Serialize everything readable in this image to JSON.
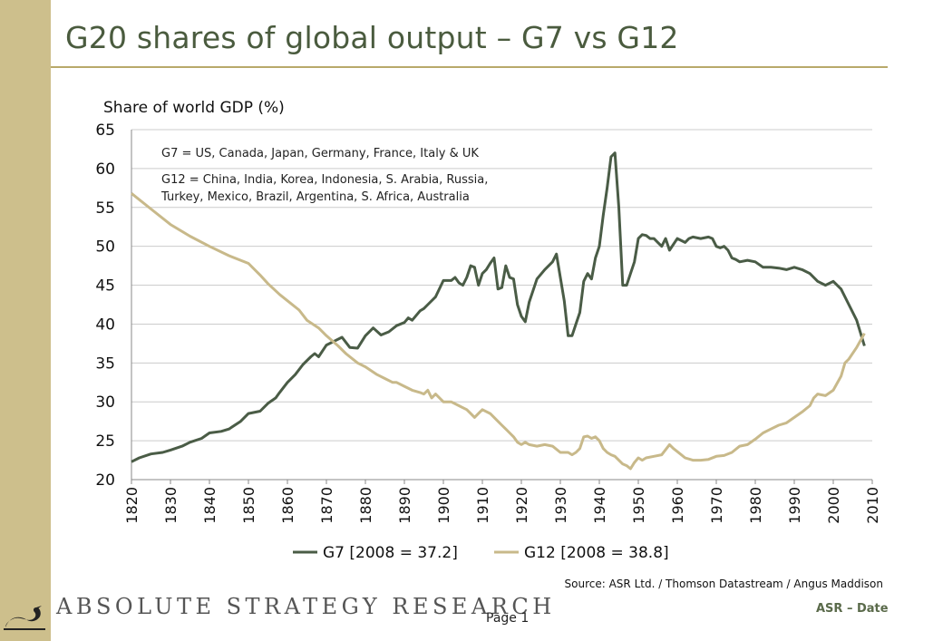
{
  "slide": {
    "title": "G20 shares of global output – G7 vs G12",
    "page_label": "Page 1",
    "brand": "ABSOLUTE STRATEGY RESEARCH",
    "date_label": "ASR – Date",
    "source": "Source: ASR Ltd. / Thomson Datastream / Angus Maddison"
  },
  "colors": {
    "sidebar": "#cdbf8c",
    "title": "#4a5b3e",
    "g7_line": "#4a5c46",
    "g12_line": "#c8b98a",
    "grid": "#cccccc"
  },
  "chart_data": {
    "type": "line",
    "title": "",
    "ylabel": "Share of world GDP (%)",
    "xlabel": "",
    "xlim": [
      1820,
      2010
    ],
    "ylim": [
      20,
      65
    ],
    "grid": true,
    "legend_position": "bottom",
    "xticks": [
      1820,
      1830,
      1840,
      1850,
      1860,
      1870,
      1880,
      1890,
      1900,
      1910,
      1920,
      1930,
      1940,
      1950,
      1960,
      1970,
      1980,
      1990,
      2000,
      2010
    ],
    "yticks": [
      20,
      25,
      30,
      35,
      40,
      45,
      50,
      55,
      60,
      65
    ],
    "annotations": [
      "G7 = US, Canada, Japan, Germany, France, Italy & UK",
      "G12 = China, India, Korea, Indonesia, S. Arabia, Russia,",
      "Turkey, Mexico, Brazil, Argentina, S. Africa, Australia"
    ],
    "series": [
      {
        "name": "G7 [2008 = 37.2]",
        "x": [
          1820,
          1822,
          1825,
          1828,
          1830,
          1833,
          1835,
          1838,
          1840,
          1843,
          1845,
          1848,
          1850,
          1853,
          1855,
          1857,
          1858,
          1860,
          1862,
          1864,
          1866,
          1867,
          1868,
          1870,
          1872,
          1874,
          1876,
          1878,
          1880,
          1882,
          1884,
          1886,
          1888,
          1890,
          1891,
          1892,
          1894,
          1895,
          1896,
          1898,
          1900,
          1902,
          1903,
          1904,
          1905,
          1906,
          1907,
          1908,
          1909,
          1910,
          1911,
          1912,
          1913,
          1914,
          1915,
          1916,
          1917,
          1918,
          1919,
          1920,
          1921,
          1922,
          1924,
          1926,
          1928,
          1929,
          1930,
          1931,
          1932,
          1933,
          1934,
          1935,
          1936,
          1937,
          1938,
          1939,
          1940,
          1941,
          1942,
          1943,
          1944,
          1945,
          1946,
          1947,
          1948,
          1949,
          1950,
          1951,
          1952,
          1953,
          1954,
          1955,
          1956,
          1957,
          1958,
          1960,
          1962,
          1963,
          1964,
          1966,
          1968,
          1969,
          1970,
          1971,
          1972,
          1973,
          1974,
          1975,
          1976,
          1978,
          1980,
          1982,
          1984,
          1986,
          1988,
          1990,
          1992,
          1994,
          1996,
          1998,
          2000,
          2002,
          2004,
          2006,
          2008
        ],
        "values": [
          22.3,
          22.8,
          23.3,
          23.5,
          23.8,
          24.3,
          24.8,
          25.3,
          26.0,
          26.2,
          26.5,
          27.5,
          28.5,
          28.8,
          29.8,
          30.5,
          31.2,
          32.5,
          33.5,
          34.8,
          35.8,
          36.2,
          35.8,
          37.3,
          37.8,
          38.3,
          37.0,
          36.9,
          38.5,
          39.5,
          38.6,
          39.0,
          39.8,
          40.2,
          40.8,
          40.5,
          41.7,
          42.0,
          42.5,
          43.5,
          45.6,
          45.6,
          46.0,
          45.3,
          45.0,
          46.0,
          47.5,
          47.3,
          45.0,
          46.5,
          47.0,
          47.8,
          48.5,
          44.5,
          44.7,
          47.5,
          46.0,
          45.8,
          42.5,
          41.0,
          40.3,
          42.8,
          45.8,
          47.0,
          48.0,
          49.0,
          46.0,
          43.0,
          38.5,
          38.5,
          40.0,
          41.5,
          45.5,
          46.5,
          45.8,
          48.5,
          50.0,
          54.0,
          57.5,
          61.5,
          62.0,
          55.0,
          45.0,
          45.0,
          46.5,
          48.0,
          51.0,
          51.5,
          51.4,
          51.0,
          51.0,
          50.5,
          50.0,
          51.0,
          49.5,
          51.0,
          50.5,
          51.0,
          51.2,
          51.0,
          51.2,
          51.0,
          50.0,
          49.8,
          50.0,
          49.5,
          48.5,
          48.3,
          48.0,
          48.2,
          48.0,
          47.3,
          47.3,
          47.2,
          47.0,
          47.3,
          47.0,
          46.5,
          45.5,
          45.0,
          45.5,
          44.5,
          42.5,
          40.5,
          37.2
        ]
      },
      {
        "name": "G12 [2008 = 38.8]",
        "x": [
          1820,
          1825,
          1830,
          1835,
          1840,
          1845,
          1850,
          1853,
          1855,
          1858,
          1860,
          1863,
          1865,
          1868,
          1870,
          1873,
          1875,
          1878,
          1880,
          1883,
          1885,
          1887,
          1888,
          1890,
          1892,
          1894,
          1895,
          1896,
          1897,
          1898,
          1900,
          1902,
          1904,
          1906,
          1907,
          1908,
          1909,
          1910,
          1912,
          1914,
          1915,
          1916,
          1917,
          1918,
          1919,
          1920,
          1921,
          1922,
          1924,
          1926,
          1928,
          1930,
          1932,
          1933,
          1934,
          1935,
          1936,
          1937,
          1938,
          1939,
          1940,
          1941,
          1942,
          1943,
          1944,
          1945,
          1946,
          1947,
          1948,
          1949,
          1950,
          1951,
          1952,
          1954,
          1956,
          1958,
          1959,
          1960,
          1962,
          1964,
          1966,
          1968,
          1970,
          1972,
          1974,
          1976,
          1978,
          1980,
          1982,
          1984,
          1986,
          1988,
          1990,
          1992,
          1994,
          1995,
          1996,
          1998,
          2000,
          2002,
          2003,
          2004,
          2006,
          2008
        ],
        "values": [
          56.8,
          54.8,
          52.8,
          51.3,
          50.0,
          48.8,
          47.8,
          46.3,
          45.2,
          43.8,
          43.0,
          41.8,
          40.5,
          39.5,
          38.5,
          37.2,
          36.2,
          35.0,
          34.5,
          33.5,
          33.0,
          32.5,
          32.5,
          32.0,
          31.5,
          31.2,
          31.0,
          31.5,
          30.5,
          31.0,
          30.0,
          30.0,
          29.5,
          29.0,
          28.5,
          28.0,
          28.5,
          29.0,
          28.5,
          27.5,
          27.0,
          26.5,
          26.0,
          25.5,
          24.8,
          24.5,
          24.8,
          24.5,
          24.3,
          24.5,
          24.3,
          23.5,
          23.5,
          23.2,
          23.5,
          24.0,
          25.5,
          25.6,
          25.3,
          25.5,
          25.0,
          24.0,
          23.5,
          23.2,
          23.0,
          22.5,
          22.0,
          21.8,
          21.4,
          22.2,
          22.8,
          22.5,
          22.8,
          23.0,
          23.2,
          24.5,
          24.0,
          23.6,
          22.8,
          22.5,
          22.5,
          22.6,
          23.0,
          23.1,
          23.5,
          24.3,
          24.5,
          25.2,
          26.0,
          26.5,
          27.0,
          27.3,
          28.0,
          28.7,
          29.5,
          30.5,
          31.0,
          30.8,
          31.5,
          33.3,
          35.0,
          35.5,
          37.0,
          38.8
        ]
      }
    ]
  }
}
